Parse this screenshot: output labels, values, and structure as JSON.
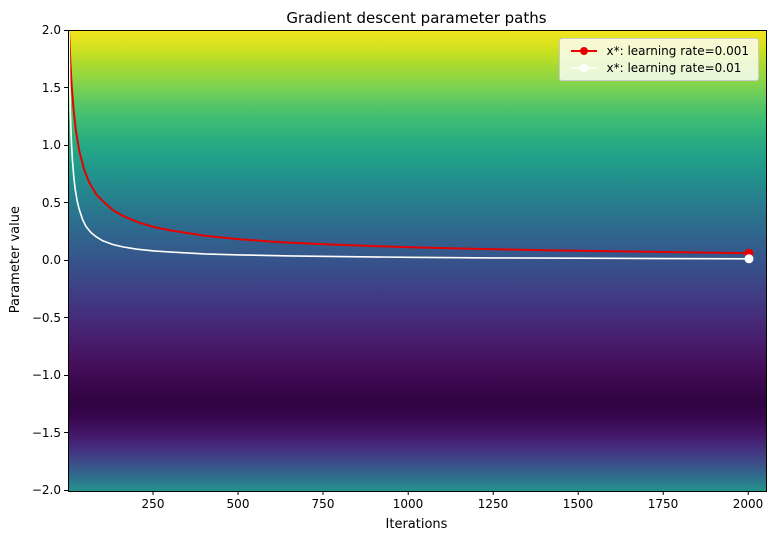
{
  "figure": {
    "title": "Gradient descent parameter paths",
    "xlabel": "Iterations",
    "ylabel": "Parameter value"
  },
  "chart_data": {
    "type": "line",
    "title": "Gradient descent parameter paths",
    "xlabel": "Iterations",
    "ylabel": "Parameter value",
    "xlim": [
      0,
      2050
    ],
    "ylim": [
      -2,
      2
    ],
    "grid": false,
    "xticks": [
      250,
      500,
      750,
      1000,
      1250,
      1500,
      1750,
      2000
    ],
    "yticks": [
      2.0,
      1.5,
      1.0,
      0.5,
      0.0,
      -0.5,
      -1.0,
      -1.5,
      -2.0
    ],
    "ytick_labels": [
      "2.0",
      "1.5",
      "1.0",
      "0.5",
      "0.0",
      "−0.5",
      "−1.0",
      "−1.5",
      "−2.0"
    ],
    "legend": {
      "position": "upper right",
      "entries": [
        "x*: learning rate=0.001",
        "x*: learning rate=0.01"
      ]
    },
    "background": {
      "type": "colormap-image",
      "name": "viridis-like-loss-landscape",
      "stops": [
        [
          0,
          "#f2e51e"
        ],
        [
          4,
          "#cfe11e"
        ],
        [
          8,
          "#a3da33"
        ],
        [
          12,
          "#7ed34f"
        ],
        [
          16,
          "#55c667"
        ],
        [
          20,
          "#3aba76"
        ],
        [
          24,
          "#28ac82"
        ],
        [
          28,
          "#219f8a"
        ],
        [
          33,
          "#238d8d"
        ],
        [
          38,
          "#287a8e"
        ],
        [
          43,
          "#2e698e"
        ],
        [
          48,
          "#345a8c"
        ],
        [
          53,
          "#3a4a89"
        ],
        [
          58,
          "#413a83"
        ],
        [
          63,
          "#462a79"
        ],
        [
          68,
          "#481b6b"
        ],
        [
          73,
          "#440e59"
        ],
        [
          78,
          "#37064a"
        ],
        [
          81,
          "#300442"
        ],
        [
          84,
          "#37064e"
        ],
        [
          88,
          "#44186b"
        ],
        [
          91,
          "#453081"
        ],
        [
          94,
          "#3c4f8a"
        ],
        [
          97,
          "#2f6f8e"
        ],
        [
          100,
          "#24938b"
        ]
      ]
    },
    "series": [
      {
        "id": "lr-0001",
        "name": "x*: learning rate=0.001",
        "color": "#e60000",
        "width": 2,
        "marker": "o",
        "marker_radius": 4.5,
        "points": [
          [
            0,
            2.0
          ],
          [
            4,
            1.72
          ],
          [
            8,
            1.52
          ],
          [
            14,
            1.3
          ],
          [
            20,
            1.14
          ],
          [
            30,
            0.96
          ],
          [
            45,
            0.79
          ],
          [
            60,
            0.68
          ],
          [
            80,
            0.58
          ],
          [
            100,
            0.52
          ],
          [
            130,
            0.44
          ],
          [
            160,
            0.39
          ],
          [
            200,
            0.34
          ],
          [
            250,
            0.295
          ],
          [
            300,
            0.265
          ],
          [
            400,
            0.22
          ],
          [
            500,
            0.19
          ],
          [
            600,
            0.168
          ],
          [
            700,
            0.152
          ],
          [
            800,
            0.14
          ],
          [
            900,
            0.13
          ],
          [
            1000,
            0.12
          ],
          [
            1200,
            0.105
          ],
          [
            1400,
            0.094
          ],
          [
            1600,
            0.084
          ],
          [
            1800,
            0.076
          ],
          [
            2000,
            0.068
          ]
        ]
      },
      {
        "id": "lr-001",
        "name": "x*: learning rate=0.01",
        "color": "#ffffff",
        "width": 1.6,
        "marker": "o",
        "marker_radius": 4.5,
        "points": [
          [
            0,
            2.0
          ],
          [
            2,
            1.55
          ],
          [
            4,
            1.28
          ],
          [
            7,
            1.04
          ],
          [
            10,
            0.88
          ],
          [
            14,
            0.73
          ],
          [
            18,
            0.63
          ],
          [
            24,
            0.52
          ],
          [
            30,
            0.45
          ],
          [
            40,
            0.36
          ],
          [
            50,
            0.3
          ],
          [
            65,
            0.245
          ],
          [
            80,
            0.21
          ],
          [
            100,
            0.175
          ],
          [
            130,
            0.143
          ],
          [
            160,
            0.122
          ],
          [
            200,
            0.103
          ],
          [
            250,
            0.088
          ],
          [
            300,
            0.077
          ],
          [
            400,
            0.062
          ],
          [
            500,
            0.053
          ],
          [
            650,
            0.044
          ],
          [
            800,
            0.038
          ],
          [
            1000,
            0.032
          ],
          [
            1250,
            0.027
          ],
          [
            1500,
            0.024
          ],
          [
            1750,
            0.021
          ],
          [
            2000,
            0.019
          ]
        ]
      }
    ]
  }
}
